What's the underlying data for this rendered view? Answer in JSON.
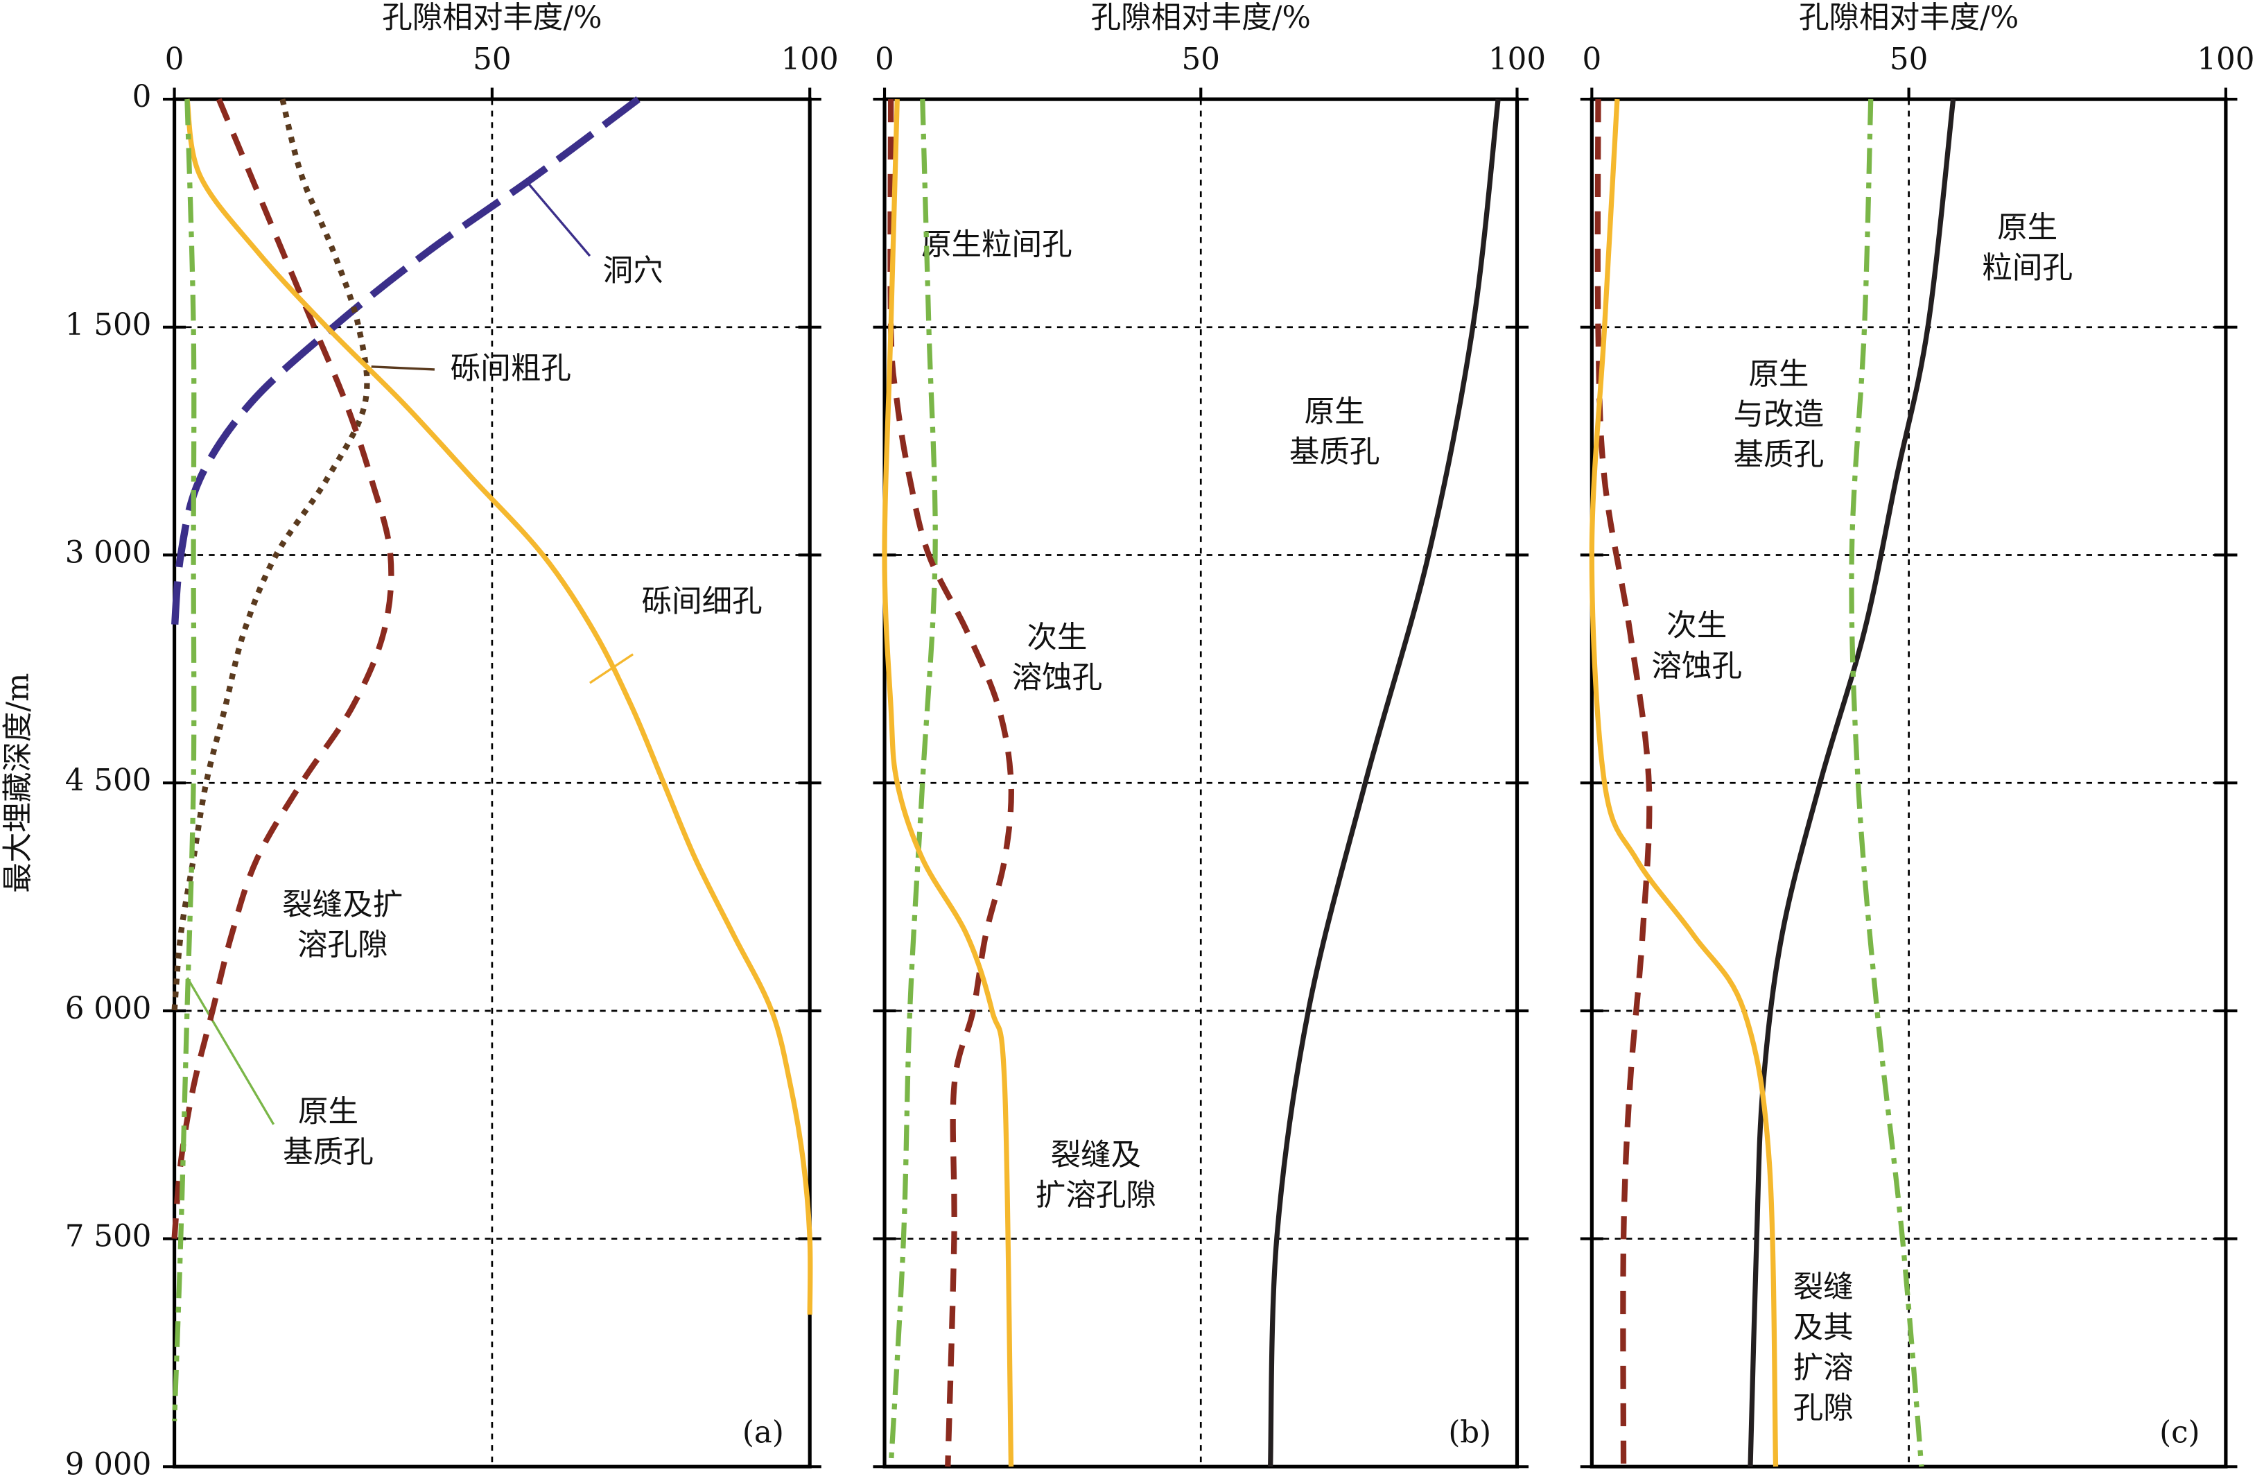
{
  "chart_data": [
    {
      "type": "line",
      "panel_label": "(a)",
      "x_label": "孔隙相对丰度/%",
      "y_label": "最大埋藏深度/m",
      "xlim": [
        0,
        100
      ],
      "xticks": [
        0,
        50,
        100
      ],
      "ylim": [
        0,
        9000
      ],
      "show_y_labels": true,
      "grid": true,
      "yticks": [
        {
          "value": 0,
          "label": "0"
        },
        {
          "value": 1500,
          "label": "1 500"
        },
        {
          "value": 3000,
          "label": "3 000"
        },
        {
          "value": 4500,
          "label": "4 500"
        },
        {
          "value": 6000,
          "label": "6 000"
        },
        {
          "value": 7500,
          "label": "7 500"
        },
        {
          "value": 9000,
          "label": "9 000"
        }
      ],
      "series": [
        {
          "name": [
            "洞穴"
          ],
          "color": "#3b2f8a",
          "style": "longdash",
          "depth": [
            0,
            500,
            1000,
            1500,
            2000,
            2500,
            3000,
            3500
          ],
          "values": [
            73,
            57,
            40,
            25,
            12,
            4,
            1,
            0
          ]
        },
        {
          "name": [
            "砾间粗孔"
          ],
          "color": "#5a3a1e",
          "style": "dotted",
          "depth": [
            0,
            500,
            1000,
            1500,
            2000,
            2500,
            3000,
            3500,
            4000,
            4500,
            5000,
            5500,
            6000
          ],
          "values": [
            17,
            20,
            25,
            29,
            30,
            24,
            16,
            11,
            8,
            5,
            3,
            1,
            0
          ]
        },
        {
          "name": [
            "砾间细孔"
          ],
          "color": "#8b2a1e",
          "style": "dashed",
          "depth": [
            0,
            500,
            1000,
            1500,
            2000,
            2500,
            3000,
            3500,
            4000,
            4500,
            5000,
            5500,
            6000,
            6500,
            7000,
            7500
          ],
          "values": [
            7,
            12,
            17,
            22,
            27,
            31,
            34,
            33,
            28,
            20,
            13,
            9,
            6,
            3,
            1,
            0
          ]
        },
        {
          "name": [
            "裂缝及扩",
            "溶孔隙"
          ],
          "color": "#f5b82e",
          "style": "solid",
          "depth": [
            0,
            500,
            1000,
            1500,
            2000,
            2500,
            3000,
            3500,
            4000,
            4500,
            5000,
            5500,
            6000,
            6500,
            7000,
            7500,
            8000
          ],
          "values": [
            2,
            4,
            13,
            24,
            36,
            47,
            58,
            66,
            72,
            77,
            82,
            88,
            94,
            97,
            99,
            100,
            100
          ]
        },
        {
          "name": [
            "原生",
            "基质孔"
          ],
          "color": "#7ab648",
          "style": "dashdot",
          "depth": [
            0,
            1500,
            3000,
            4500,
            6000,
            7500,
            8700
          ],
          "values": [
            2,
            3,
            3,
            3,
            2,
            1,
            0
          ]
        }
      ]
    },
    {
      "type": "line",
      "panel_label": "(b)",
      "x_label": "孔隙相对丰度/%",
      "xlim": [
        0,
        100
      ],
      "xticks": [
        0,
        50,
        100
      ],
      "ylim": [
        0,
        9000
      ],
      "show_y_labels": false,
      "grid": true,
      "yticks": [
        0,
        1500,
        3000,
        4500,
        6000,
        7500,
        9000
      ],
      "series": [
        {
          "name": [
            "原生粒间孔"
          ],
          "color": "#231f20",
          "style": "solid",
          "depth": [
            0,
            1500,
            3000,
            4500,
            6000,
            7500,
            9000
          ],
          "values": [
            97,
            93,
            86,
            76,
            67,
            62,
            61
          ]
        },
        {
          "name": [
            "原生",
            "基质孔"
          ],
          "color": "#7ab648",
          "style": "dashdot",
          "depth": [
            0,
            1500,
            3000,
            4500,
            6000,
            7500,
            9000
          ],
          "values": [
            6,
            7,
            8,
            6,
            4,
            3,
            1
          ]
        },
        {
          "name": [
            "次生",
            "溶蚀孔"
          ],
          "color": "#8b2a1e",
          "style": "dashed",
          "depth": [
            0,
            1500,
            2000,
            2500,
            3000,
            3500,
            4000,
            4500,
            5000,
            5500,
            6000,
            6500,
            7500,
            9000
          ],
          "values": [
            1,
            1,
            2,
            4,
            7,
            13,
            18,
            20,
            19,
            16,
            14,
            11,
            11,
            10
          ]
        },
        {
          "name": [
            "裂缝及",
            "扩溶孔隙"
          ],
          "color": "#f5b82e",
          "style": "solid",
          "depth": [
            0,
            1500,
            3000,
            4000,
            4500,
            5000,
            5500,
            6000,
            6500,
            9000
          ],
          "values": [
            2,
            1,
            0,
            1,
            2,
            6,
            13,
            17,
            19,
            20
          ]
        }
      ]
    },
    {
      "type": "line",
      "panel_label": "(c)",
      "x_label": "孔隙相对丰度/%",
      "xlim": [
        0,
        100
      ],
      "xticks": [
        0,
        50,
        100
      ],
      "ylim": [
        0,
        9000
      ],
      "show_y_labels": false,
      "grid": true,
      "yticks": [
        0,
        1500,
        3000,
        4500,
        6000,
        7500,
        9000
      ],
      "series": [
        {
          "name": [
            "原生",
            "粒间孔"
          ],
          "color": "#231f20",
          "style": "solid",
          "depth": [
            0,
            1500,
            2500,
            3500,
            4500,
            5500,
            6500,
            7500,
            9000
          ],
          "values": [
            57,
            53,
            48,
            43,
            36,
            30,
            27,
            26,
            25
          ]
        },
        {
          "name": [
            "原生",
            "与改造",
            "基质孔"
          ],
          "color": "#7ab648",
          "style": "dashdot",
          "depth": [
            0,
            1500,
            3000,
            4500,
            6000,
            7500,
            9000
          ],
          "values": [
            44,
            43,
            41,
            42,
            45,
            49,
            52
          ]
        },
        {
          "name": [
            "次生",
            "溶蚀孔"
          ],
          "color": "#8b2a1e",
          "style": "dashed",
          "depth": [
            0,
            1500,
            2500,
            3500,
            4500,
            5500,
            6500,
            7500,
            9000
          ],
          "values": [
            1,
            1,
            2,
            6,
            9,
            8,
            6,
            5,
            5
          ]
        },
        {
          "name": [
            "裂缝",
            "及其",
            "扩溶",
            "孔隙"
          ],
          "color": "#f5b82e",
          "style": "solid",
          "depth": [
            0,
            1500,
            3000,
            4500,
            5000,
            5500,
            6000,
            7000,
            9000
          ],
          "values": [
            4,
            2,
            0,
            2,
            7,
            16,
            24,
            28,
            29
          ]
        }
      ]
    }
  ]
}
